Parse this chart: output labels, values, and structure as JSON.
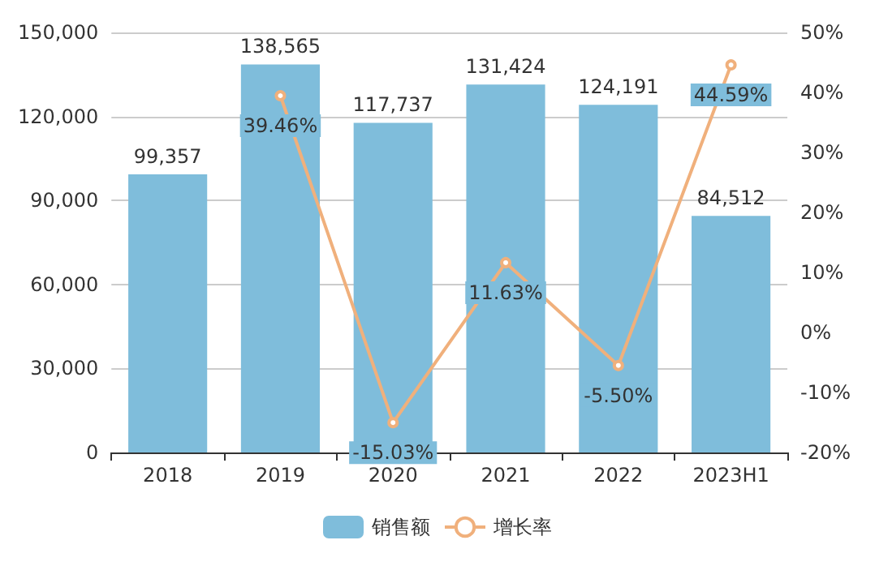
{
  "chart_data": {
    "type": "bar",
    "categories": [
      "2018",
      "2019",
      "2020",
      "2021",
      "2022",
      "2023H1"
    ],
    "series": [
      {
        "name": "销售额",
        "color": "#7fbddb",
        "values": [
          99357,
          138565,
          117737,
          131424,
          124191,
          84512
        ],
        "value_labels": [
          "99,357",
          "138,565",
          "117,737",
          "131,424",
          "124,191",
          "84,512"
        ]
      },
      {
        "name": "增长率",
        "type": "line",
        "axis": "y2",
        "color": "#f0b07c",
        "values": [
          null,
          39.46,
          -15.03,
          11.63,
          -5.5,
          44.59
        ],
        "value_labels": [
          null,
          "39.46%",
          "-15.03%",
          "11.63%",
          "-5.50%",
          "44.59%"
        ]
      }
    ],
    "ylim": [
      0,
      150000
    ],
    "yticks": [
      {
        "value": 0,
        "label": "0"
      },
      {
        "value": 30000,
        "label": "30,000"
      },
      {
        "value": 60000,
        "label": "60,000"
      },
      {
        "value": 90000,
        "label": "90,000"
      },
      {
        "value": 120000,
        "label": "120,000"
      },
      {
        "value": 150000,
        "label": "150,000"
      }
    ],
    "y2lim": [
      -20,
      50
    ],
    "y2ticks": [
      {
        "value": -20,
        "label": "-20%"
      },
      {
        "value": -10,
        "label": "-10%"
      },
      {
        "value": 0,
        "label": "0%"
      },
      {
        "value": 10,
        "label": "10%"
      },
      {
        "value": 20,
        "label": "20%"
      },
      {
        "value": 30,
        "label": "30%"
      },
      {
        "value": 40,
        "label": "40%"
      },
      {
        "value": 50,
        "label": "50%"
      }
    ],
    "grid": "y",
    "legend": "bottom",
    "marker": "circle",
    "line_style": "solid"
  }
}
